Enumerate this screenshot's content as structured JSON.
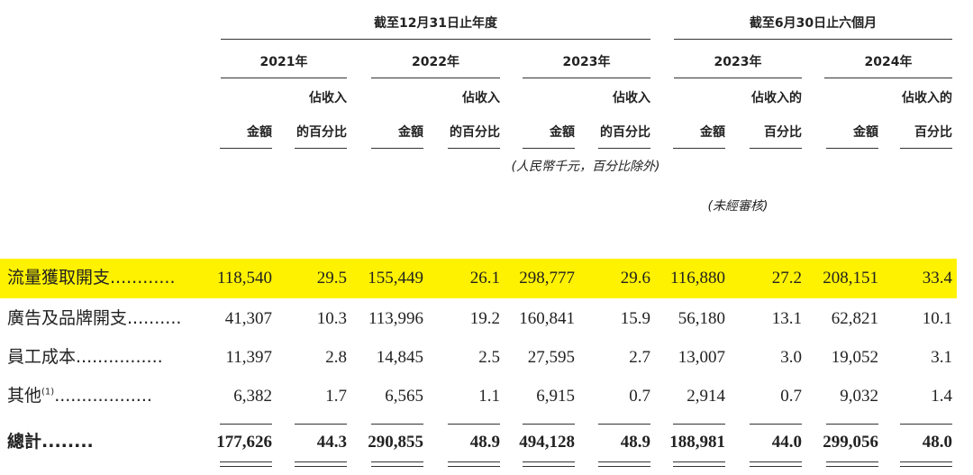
{
  "header": {
    "period_groups": [
      "截至12月31日止年度",
      "截至6月30日止六個月"
    ],
    "years": [
      "2021年",
      "2022年",
      "2023年",
      "2023年",
      "2024年"
    ],
    "column_headers": [
      [
        "金額"
      ],
      [
        "佔收入",
        "的百分比"
      ],
      [
        "金額"
      ],
      [
        "佔收入",
        "的百分比"
      ],
      [
        "金額"
      ],
      [
        "佔收入",
        "的百分比"
      ],
      [
        "金額"
      ],
      [
        "佔收入的",
        "百分比"
      ],
      [
        "金額"
      ],
      [
        "佔收入的",
        "百分比"
      ]
    ],
    "unit_note": "(人民幣千元，百分比除外)",
    "audit_note": "(未經審核)"
  },
  "table": {
    "rows": [
      {
        "label": "流量獲取開支",
        "leader": "............",
        "values": [
          "118,540",
          "29.5",
          "155,449",
          "26.1",
          "298,777",
          "29.6",
          "116,880",
          "27.2",
          "208,151",
          "33.4"
        ]
      },
      {
        "label": "廣告及品牌開支",
        "leader": "..........",
        "values": [
          "41,307",
          "10.3",
          "113,996",
          "19.2",
          "160,841",
          "15.9",
          "56,180",
          "13.1",
          "62,821",
          "10.1"
        ]
      },
      {
        "label": "員工成本",
        "leader": "................",
        "values": [
          "11,397",
          "2.8",
          "14,845",
          "2.5",
          "27,595",
          "2.7",
          "13,007",
          "3.0",
          "19,052",
          "3.1"
        ]
      },
      {
        "label": "其他",
        "note": "(1)",
        "leader": "..................",
        "values": [
          "6,382",
          "1.7",
          "6,565",
          "1.1",
          "6,915",
          "0.7",
          "2,914",
          "0.7",
          "9,032",
          "1.4"
        ]
      },
      {
        "label": "總計",
        "leader": "........",
        "values": [
          "177,626",
          "44.3",
          "290,855",
          "48.9",
          "494,128",
          "48.9",
          "188,981",
          "44.0",
          "299,056",
          "48.0"
        ]
      }
    ]
  }
}
